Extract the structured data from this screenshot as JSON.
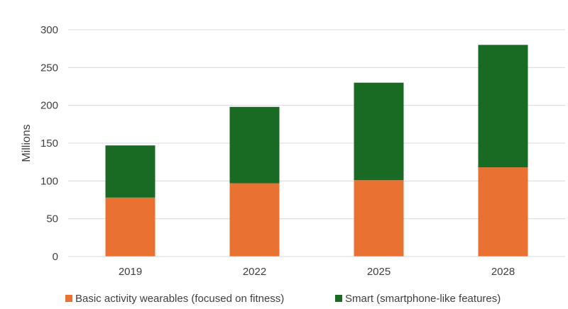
{
  "chart_data": {
    "type": "bar",
    "stacked": true,
    "categories": [
      "2019",
      "2022",
      "2025",
      "2028"
    ],
    "series": [
      {
        "name": "Basic activity wearables (focused on fitness)",
        "values": [
          78,
          97,
          101,
          118
        ],
        "color": "#E97132"
      },
      {
        "name": "Smart (smartphone-like features)",
        "values": [
          69,
          101,
          129,
          162
        ],
        "color": "#196B24"
      }
    ],
    "ylabel": "Millions",
    "ylim": [
      0,
      300
    ],
    "yticks": [
      0,
      50,
      100,
      150,
      200,
      250,
      300
    ],
    "grid": true,
    "legend": "bottom"
  }
}
